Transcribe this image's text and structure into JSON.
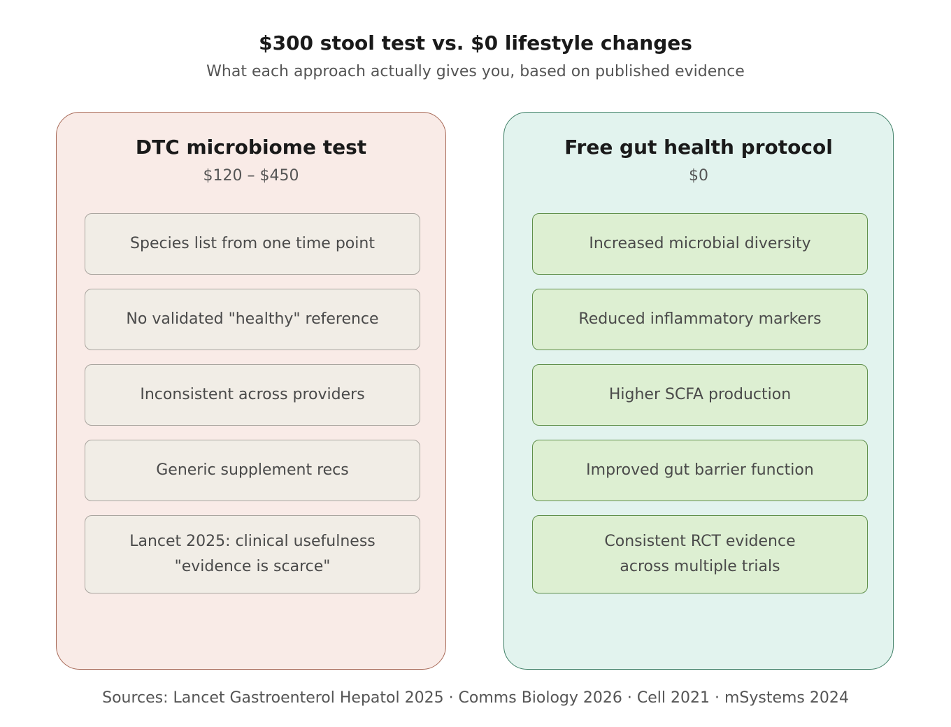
{
  "header": {
    "title": "$300 stool test vs. $0 lifestyle changes",
    "subtitle": "What each approach actually gives you, based on published evidence"
  },
  "left_panel": {
    "title": "DTC microbiome test",
    "price": "$120 – $450",
    "items": [
      "Species list from one time point",
      "No validated \"healthy\" reference",
      "Inconsistent across providers",
      "Generic supplement recs",
      "Lancet 2025: clinical usefulness\n\"evidence is scarce\""
    ]
  },
  "right_panel": {
    "title": "Free gut health protocol",
    "price": "$0",
    "items": [
      "Increased microbial diversity",
      "Reduced inflammatory markers",
      "Higher SCFA production",
      "Improved gut barrier function",
      "Consistent RCT evidence\nacross multiple trials"
    ]
  },
  "footer": {
    "sources": "Sources: Lancet Gastroenterol Hepatol 2025 · Comms Biology 2026 · Cell 2021 · mSystems 2024"
  },
  "colors": {
    "left_panel_bg": "#f9ebe7",
    "left_panel_border": "#a86a58",
    "left_item_bg": "#f1ede6",
    "right_panel_bg": "#e2f3ee",
    "right_panel_border": "#3f7f66",
    "right_item_bg": "#ddefd2"
  }
}
